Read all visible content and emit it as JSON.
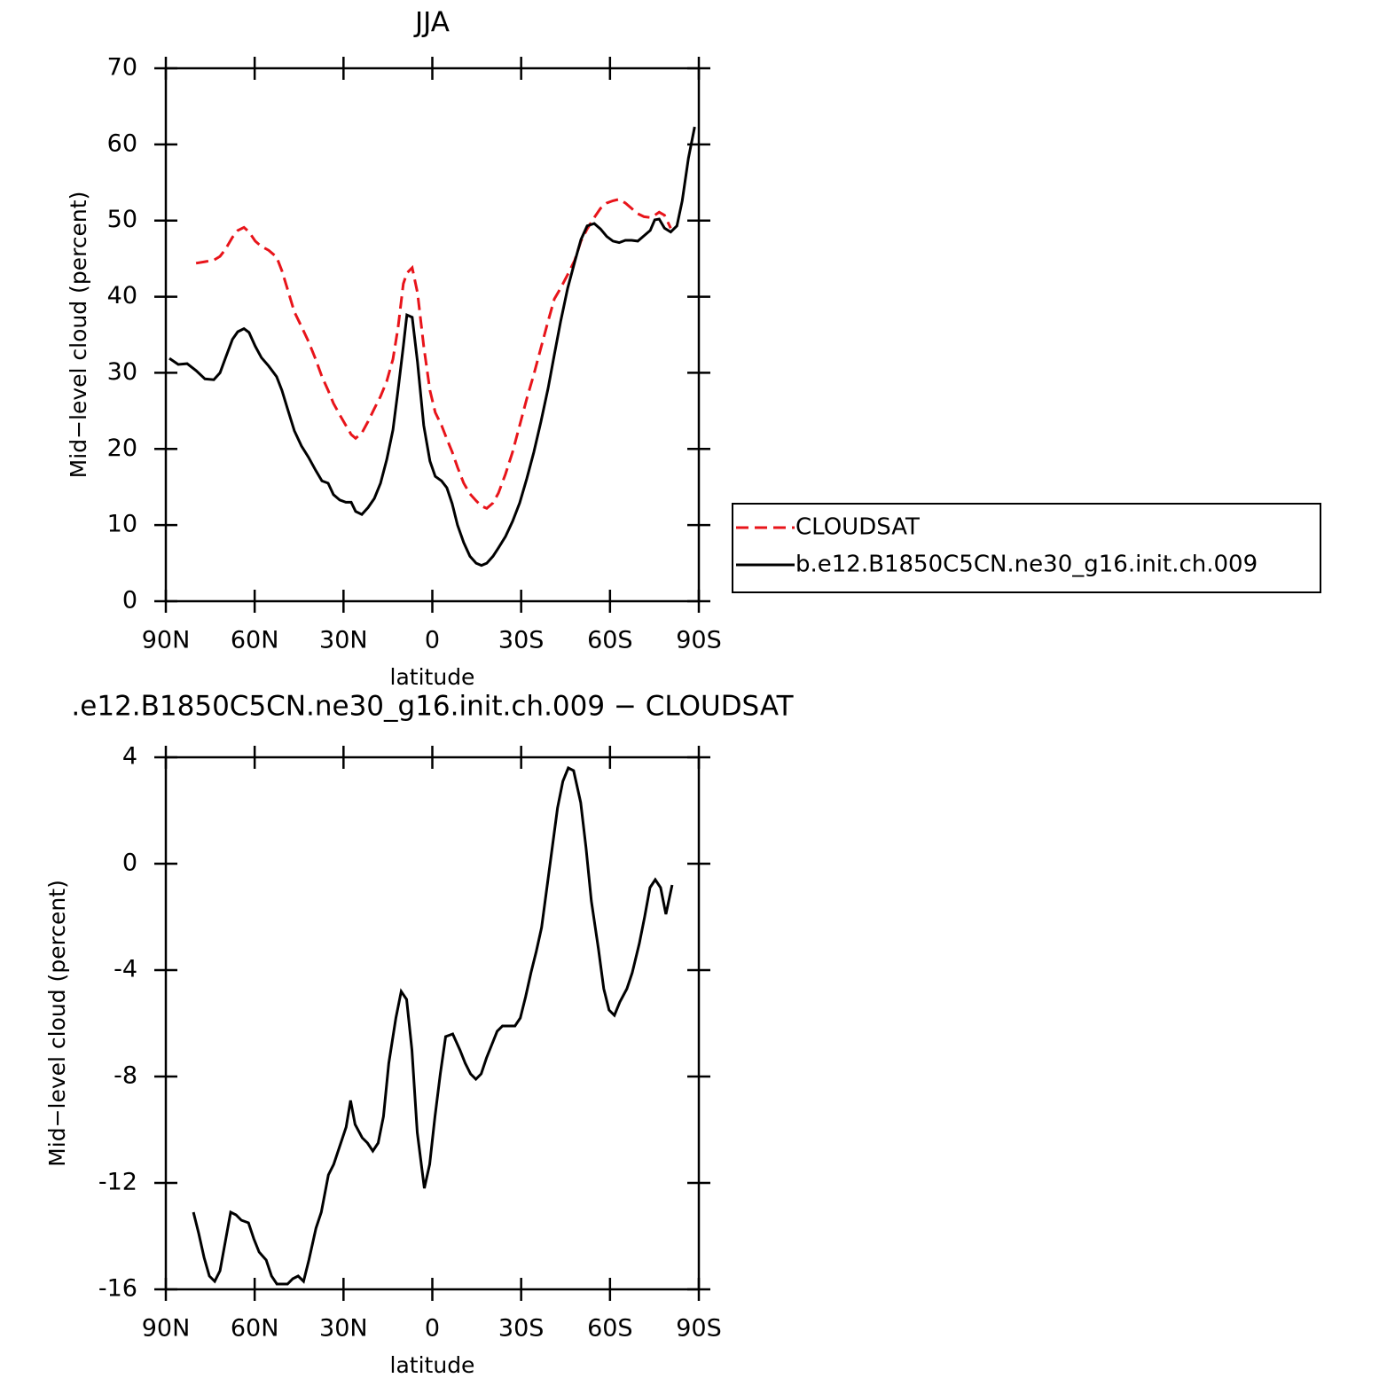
{
  "chart_data": [
    {
      "type": "line",
      "title": "JJA",
      "xlabel": "latitude",
      "ylabel": "Mid−level cloud (percent)",
      "x": [
        88.8,
        85.8,
        82.8,
        79.8,
        76.8,
        73.8,
        71.7,
        69.9,
        67.5,
        65.7,
        63.6,
        61.9,
        59.8,
        57.7,
        55.3,
        52.6,
        50.8,
        49.0,
        46.6,
        44.2,
        41.8,
        39.4,
        37.3,
        35.2,
        33.4,
        31.3,
        29.2,
        27.4,
        25.9,
        23.8,
        21.7,
        19.6,
        17.5,
        15.4,
        13.3,
        11.6,
        9.8,
        8.6,
        6.8,
        5.0,
        2.9,
        0.8,
        -1.0,
        -3.1,
        -4.9,
        -6.7,
        -8.5,
        -10.6,
        -12.7,
        -14.8,
        -16.6,
        -18.4,
        -20.5,
        -22.3,
        -24.7,
        -27.1,
        -29.5,
        -31.9,
        -34.3,
        -36.7,
        -39.1,
        -41.2,
        -43.3,
        -45.7,
        -48.1,
        -50.2,
        -52.3,
        -54.7,
        -56.8,
        -58.9,
        -61.0,
        -63.1,
        -65.2,
        -67.3,
        -69.4,
        -71.5,
        -73.6,
        -75.1,
        -76.6,
        -78.4,
        -80.5,
        -82.6,
        -84.4,
        -86.5,
        -88.6
      ],
      "series": [
        {
          "name": "CLOUDSAT",
          "color": "#e8141a",
          "dashed": true,
          "values": [
            null,
            null,
            null,
            44.4,
            44.6,
            44.8,
            45.3,
            46.2,
            47.8,
            48.7,
            49.1,
            48.5,
            47.3,
            46.6,
            46.1,
            45.2,
            43.4,
            41.1,
            38.0,
            36.1,
            34.1,
            31.8,
            29.5,
            27.7,
            26.0,
            24.5,
            23.1,
            21.9,
            21.4,
            22.1,
            23.6,
            25.3,
            26.9,
            28.9,
            31.8,
            35.9,
            41.7,
            43.1,
            43.8,
            40.5,
            33.5,
            27.7,
            24.8,
            23.1,
            21.3,
            19.6,
            17.6,
            15.5,
            14.1,
            13.2,
            12.5,
            12.2,
            12.9,
            14.2,
            16.7,
            19.6,
            23.1,
            26.6,
            29.8,
            33.3,
            36.8,
            39.7,
            41.1,
            42.9,
            44.8,
            47.3,
            48.9,
            50.4,
            51.6,
            52.3,
            52.6,
            52.8,
            52.3,
            51.6,
            50.9,
            50.5,
            50.4,
            50.7,
            51.1,
            50.7,
            49.0,
            null,
            null,
            null,
            null
          ]
        },
        {
          "name": "b.e12.B1850C5CN.ne30_g16.init.ch.009",
          "color": "#000000",
          "dashed": false,
          "values": [
            31.9,
            31.1,
            31.2,
            30.3,
            29.2,
            29.1,
            30.0,
            31.9,
            34.4,
            35.4,
            35.8,
            35.3,
            33.5,
            32.0,
            30.9,
            29.5,
            27.7,
            25.4,
            22.4,
            20.4,
            18.9,
            17.2,
            15.8,
            15.5,
            14.0,
            13.3,
            13.0,
            13.0,
            11.8,
            11.4,
            12.3,
            13.5,
            15.5,
            18.6,
            22.5,
            27.7,
            33.5,
            37.6,
            37.3,
            31.4,
            23.1,
            18.4,
            16.4,
            15.8,
            14.9,
            12.8,
            10.0,
            7.7,
            5.9,
            5.0,
            4.7,
            5.0,
            5.9,
            7.0,
            8.5,
            10.5,
            12.9,
            16.1,
            19.6,
            23.6,
            28.0,
            32.4,
            36.7,
            41.1,
            44.6,
            47.5,
            49.3,
            49.6,
            48.9,
            47.9,
            47.3,
            47.1,
            47.4,
            47.4,
            47.3,
            48.0,
            48.7,
            50.1,
            50.2,
            49.0,
            48.5,
            49.3,
            52.6,
            58.2,
            62.3
          ]
        }
      ],
      "legend": "right",
      "xlim": [
        90,
        -90
      ],
      "xticks": [
        {
          "value": 90,
          "label": "90N"
        },
        {
          "value": 60,
          "label": "60N"
        },
        {
          "value": 30,
          "label": "30N"
        },
        0,
        {
          "value": -30,
          "label": "30S"
        },
        {
          "value": -60,
          "label": "60S"
        },
        {
          "value": -90,
          "label": "90S"
        }
      ],
      "ylim": [
        0,
        70
      ],
      "yticks": [
        0,
        10,
        20,
        30,
        40,
        50,
        60,
        70
      ]
    },
    {
      "type": "line",
      "title": ".e12.B1850C5CN.ne30_g16.init.ch.009 − CLOUDSAT",
      "xlabel": "latitude",
      "ylabel": "Mid−level cloud (percent)",
      "x": [
        80.7,
        78.9,
        77.1,
        75.3,
        73.5,
        71.7,
        69.9,
        68.1,
        66.3,
        64.5,
        62.1,
        60.3,
        58.5,
        56.1,
        54.3,
        52.5,
        50.7,
        48.9,
        47.1,
        45.3,
        43.5,
        41.7,
        39.3,
        37.5,
        35.1,
        33.3,
        30.9,
        29.1,
        27.6,
        26.1,
        23.7,
        21.9,
        20.1,
        18.3,
        16.5,
        14.7,
        12.3,
        10.5,
        8.7,
        6.9,
        5.1,
        2.7,
        0.9,
        -0.9,
        -2.7,
        -4.5,
        -6.9,
        -9.3,
        -11.1,
        -12.9,
        -14.7,
        -16.5,
        -18.3,
        -20.1,
        -21.9,
        -23.7,
        -25.5,
        -27.9,
        -29.7,
        -31.5,
        -33.3,
        -35.1,
        -36.9,
        -38.7,
        -40.5,
        -42.3,
        -44.1,
        -45.9,
        -47.7,
        -50.1,
        -51.9,
        -53.7,
        -56.1,
        -57.9,
        -59.7,
        -61.5,
        -63.3,
        -65.7,
        -67.5,
        -69.9,
        -71.7,
        -73.5,
        -75.3,
        -77.1,
        -78.9,
        -81.0
      ],
      "color": "#000000",
      "values": [
        -13.1,
        -13.9,
        -14.8,
        -15.5,
        -15.7,
        -15.3,
        -14.2,
        -13.1,
        -13.2,
        -13.4,
        -13.5,
        -14.1,
        -14.6,
        -14.9,
        -15.5,
        -15.8,
        -15.8,
        -15.8,
        -15.6,
        -15.5,
        -15.7,
        -14.9,
        -13.7,
        -13.1,
        -11.7,
        -11.3,
        -10.5,
        -9.9,
        -8.9,
        -9.8,
        -10.3,
        -10.5,
        -10.8,
        -10.5,
        -9.5,
        -7.5,
        -5.8,
        -4.8,
        -5.1,
        -7.0,
        -10.1,
        -12.2,
        -11.3,
        -9.5,
        -7.9,
        -6.5,
        -6.4,
        -7.0,
        -7.5,
        -7.9,
        -8.1,
        -7.9,
        -7.3,
        -6.8,
        -6.3,
        -6.1,
        -6.1,
        -6.1,
        -5.8,
        -5.0,
        -4.1,
        -3.3,
        -2.4,
        -0.9,
        0.6,
        2.1,
        3.1,
        3.6,
        3.5,
        2.3,
        0.6,
        -1.4,
        -3.2,
        -4.7,
        -5.5,
        -5.7,
        -5.2,
        -4.7,
        -4.1,
        -3.0,
        -2.0,
        -0.9,
        -0.6,
        -0.9,
        -1.9,
        -0.8
      ],
      "xlim": [
        90,
        -90
      ],
      "xticks": [
        {
          "value": 90,
          "label": "90N"
        },
        {
          "value": 60,
          "label": "60N"
        },
        {
          "value": 30,
          "label": "30N"
        },
        0,
        {
          "value": -30,
          "label": "30S"
        },
        {
          "value": -60,
          "label": "60S"
        },
        {
          "value": -90,
          "label": "90S"
        }
      ],
      "ylim": [
        -16,
        4
      ],
      "yticks": [
        -16,
        -12,
        -8,
        -4,
        0,
        4
      ]
    }
  ]
}
